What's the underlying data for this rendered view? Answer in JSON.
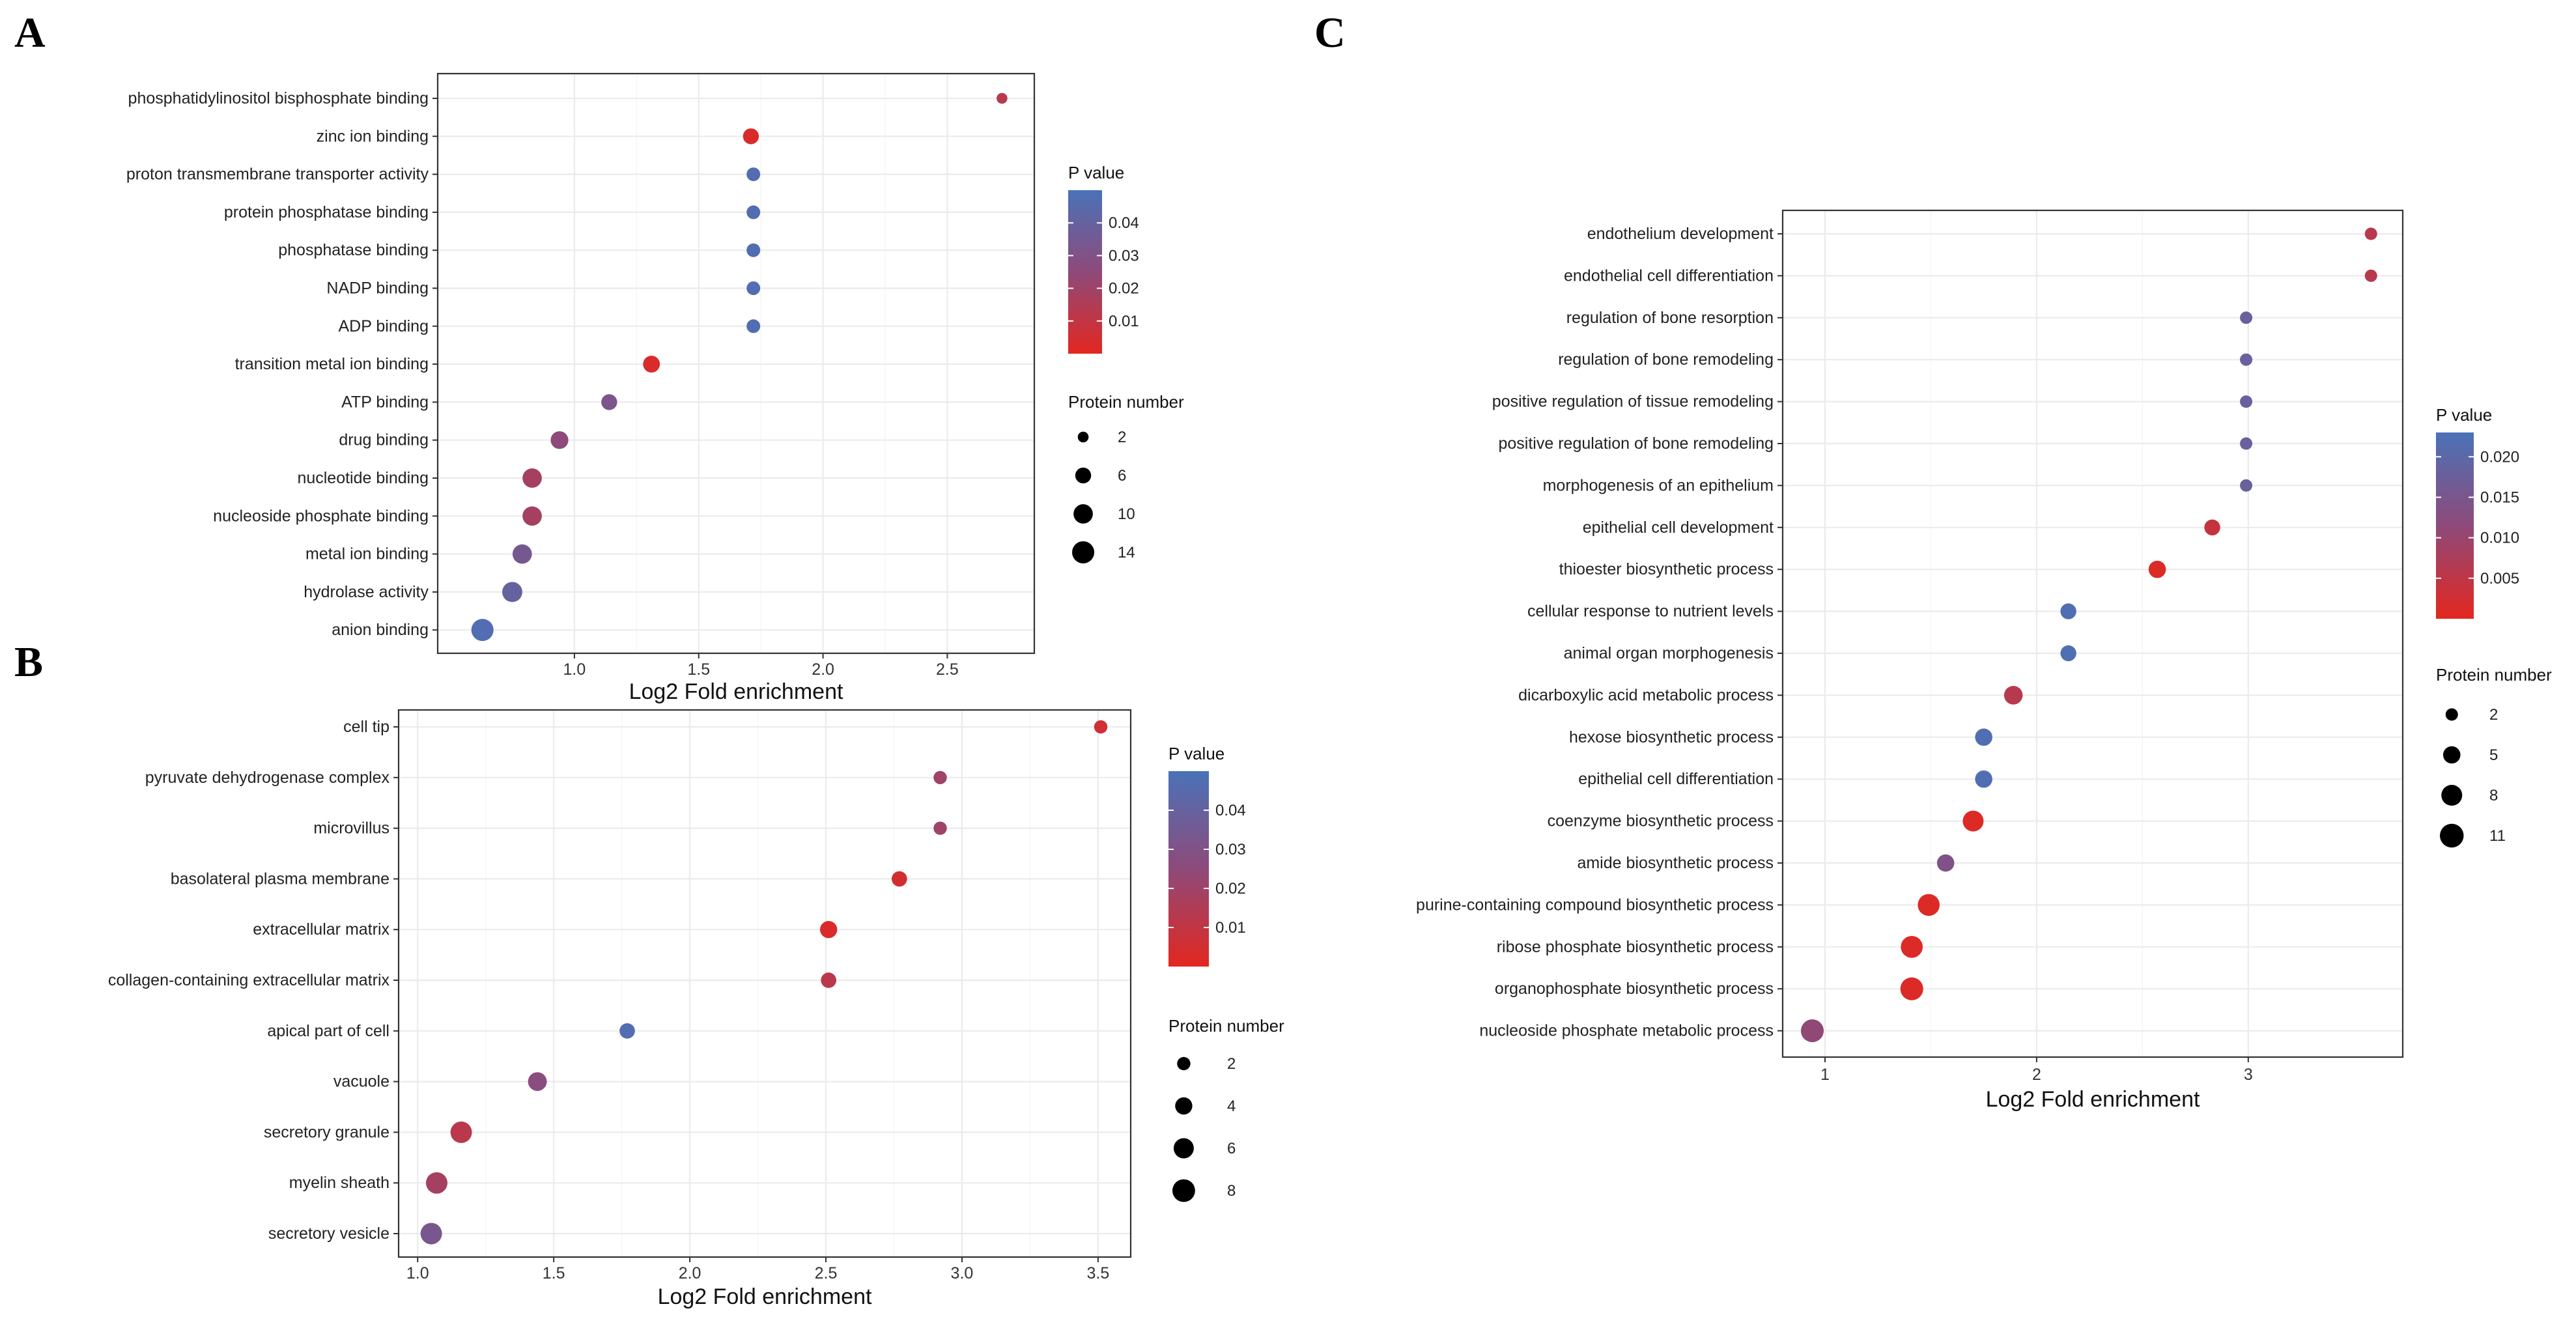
{
  "chart_data": [
    {
      "panel": "A",
      "type": "scatter",
      "xlabel": "Log2 Fold enrichment",
      "xticks": [
        1.0,
        1.5,
        2.0,
        2.5
      ],
      "xtick_labels": [
        "1.0",
        "1.5",
        "2.0",
        "2.5"
      ],
      "xlim": [
        0.45,
        2.85
      ],
      "categories": [
        "phosphatidylinositol bisphosphate binding",
        "zinc ion binding",
        "proton transmembrane transporter activity",
        "protein phosphatase binding",
        "phosphatase binding",
        "NADP binding",
        "ADP binding",
        "transition metal ion binding",
        "ATP binding",
        "drug binding",
        "nucleotide binding",
        "nucleoside phosphate binding",
        "metal ion binding",
        "hydrolase activity",
        "anion binding"
      ],
      "x": [
        2.72,
        1.71,
        1.72,
        1.72,
        1.72,
        1.72,
        1.72,
        1.31,
        1.14,
        0.94,
        0.83,
        0.83,
        0.79,
        0.75,
        0.63
      ],
      "size": [
        2,
        6,
        4,
        4,
        4,
        4,
        4,
        7,
        6,
        8,
        10,
        10,
        10,
        11,
        14
      ],
      "pvalue": [
        0.012,
        0.003,
        0.047,
        0.047,
        0.047,
        0.047,
        0.047,
        0.003,
        0.032,
        0.025,
        0.018,
        0.018,
        0.034,
        0.04,
        0.047
      ],
      "color_legend": {
        "title": "P value",
        "min": 0.0,
        "max": 0.05,
        "ticks": [
          0.01,
          0.02,
          0.03,
          0.04
        ],
        "tick_labels": [
          "0.01",
          "0.02",
          "0.03",
          "0.04"
        ]
      },
      "size_legend": {
        "title": "Protein number",
        "values": [
          2,
          6,
          10,
          14
        ],
        "labels": [
          "2",
          "6",
          "10",
          "14"
        ]
      }
    },
    {
      "panel": "B",
      "type": "scatter",
      "xlabel": "Log2 Fold enrichment",
      "xticks": [
        1.0,
        1.5,
        2.0,
        2.5,
        3.0,
        3.5
      ],
      "xtick_labels": [
        "1.0",
        "1.5",
        "2.0",
        "2.5",
        "3.0",
        "3.5"
      ],
      "xlim": [
        0.93,
        3.62
      ],
      "categories": [
        "cell tip",
        "pyruvate dehydrogenase complex",
        "microvillus",
        "basolateral plasma membrane",
        "extracellular matrix",
        "collagen-containing extracellular matrix",
        "apical part of cell",
        "vacuole",
        "secretory granule",
        "myelin sheath",
        "secretory vesicle"
      ],
      "x": [
        3.51,
        2.92,
        2.92,
        2.77,
        2.51,
        2.51,
        1.77,
        1.44,
        1.16,
        1.07,
        1.05
      ],
      "size": [
        2,
        2,
        2,
        3,
        4,
        3,
        3,
        5,
        7,
        7,
        7
      ],
      "pvalue": [
        0.006,
        0.02,
        0.02,
        0.005,
        0.003,
        0.012,
        0.047,
        0.027,
        0.012,
        0.018,
        0.033
      ],
      "color_legend": {
        "title": "P value",
        "min": 0.0,
        "max": 0.05,
        "ticks": [
          0.01,
          0.02,
          0.03,
          0.04
        ],
        "tick_labels": [
          "0.01",
          "0.02",
          "0.03",
          "0.04"
        ]
      },
      "size_legend": {
        "title": "Protein number",
        "values": [
          2,
          4,
          6,
          8
        ],
        "labels": [
          "2",
          "4",
          "6",
          "8"
        ]
      }
    },
    {
      "panel": "C",
      "type": "scatter",
      "xlabel": "Log2 Fold enrichment",
      "xticks": [
        1,
        2,
        3
      ],
      "xtick_labels": [
        "1",
        "2",
        "3"
      ],
      "xlim": [
        0.8,
        3.73
      ],
      "categories": [
        "endothelium development",
        "endothelial cell differentiation",
        "regulation of bone resorption",
        "regulation of bone remodeling",
        "positive regulation of tissue remodeling",
        "positive regulation of bone remodeling",
        "morphogenesis of an epithelium",
        "epithelial cell development",
        "thioester biosynthetic process",
        "cellular response to nutrient levels",
        "animal organ morphogenesis",
        "dicarboxylic acid metabolic process",
        "hexose biosynthetic process",
        "epithelial cell differentiation",
        "coenzyme biosynthetic process",
        "amide biosynthetic process",
        "purine-containing compound biosynthetic process",
        "ribose phosphate biosynthetic process",
        "organophosphate biosynthetic process",
        "nucleoside phosphate metabolic process"
      ],
      "x": [
        3.58,
        3.58,
        2.99,
        2.99,
        2.99,
        2.99,
        2.99,
        2.83,
        2.57,
        2.15,
        2.15,
        1.89,
        1.75,
        1.75,
        1.7,
        1.57,
        1.49,
        1.41,
        1.41,
        0.94
      ],
      "size": [
        2,
        2,
        2,
        2,
        2,
        2,
        2,
        4,
        5,
        4,
        4,
        6,
        5,
        5,
        8,
        5,
        9,
        9,
        10,
        10
      ],
      "pvalue": [
        0.006,
        0.006,
        0.018,
        0.018,
        0.018,
        0.018,
        0.018,
        0.004,
        0.001,
        0.022,
        0.022,
        0.006,
        0.022,
        0.022,
        0.001,
        0.014,
        0.001,
        0.001,
        0.001,
        0.011
      ],
      "color_legend": {
        "title": "P value",
        "min": 0.0,
        "max": 0.023,
        "ticks": [
          0.005,
          0.01,
          0.015,
          0.02
        ],
        "tick_labels": [
          "0.005",
          "0.010",
          "0.015",
          "0.020"
        ]
      },
      "size_legend": {
        "title": "Protein number",
        "values": [
          2,
          5,
          8,
          11
        ],
        "labels": [
          "2",
          "5",
          "8",
          "11"
        ]
      }
    }
  ],
  "colors": {
    "low": "#e3271f",
    "mid": "#8e4a7a",
    "high": "#4a72b8",
    "grid": "#ebebeb",
    "border": "#333333"
  }
}
